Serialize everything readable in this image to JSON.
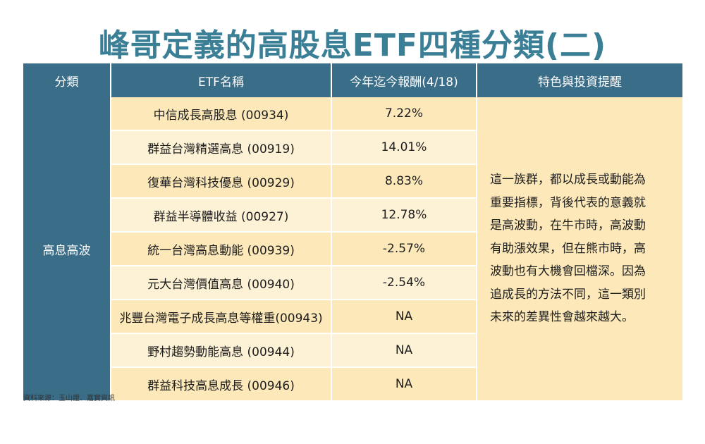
{
  "title": "峰哥定義的高股息ETF四種分類(二)",
  "headers": [
    "分類",
    "ETF名稱",
    "今年迄今報酬(4/18)",
    "特色與投資提醒"
  ],
  "category": "高息高波",
  "rows": [
    {
      "name": "中信成長高股息 (00934)",
      "return": "7.22%"
    },
    {
      "name": "群益台灣精選高息 (00919)",
      "return": "14.01%"
    },
    {
      "name": "復華台灣科技優息 (00929)",
      "return": "8.83%"
    },
    {
      "name": "群益半導體收益 (00927)",
      "return": "12.78%"
    },
    {
      "name": "統一台灣高息動能 (00939)",
      "return": "-2.57%"
    },
    {
      "name": "元大台灣價值高息 (00940)",
      "return": "-2.54%"
    },
    {
      "name": "兆豐台灣電子成長高息等權重(00943)",
      "return": "NA"
    },
    {
      "name": "野村趨勢動能高息 (00944)",
      "return": "NA"
    },
    {
      "name": "群益科技高息成長 (00946)",
      "return": "NA"
    }
  ],
  "note_lines": [
    "這一族群，都以成長或動能為",
    "重要指標，背後代表的意義就",
    "是高波動，在牛市時，高波動",
    "有助漲效果，但在熊市時，高",
    "波動也有大機會回檔深。因為",
    "追成長的方法不同，這一類別",
    "未來的差異性會越來越大。"
  ],
  "source": "資料來源：玉山證、嘉實資訊",
  "colors": {
    "title": "#3a7f96",
    "header_bg": "#3a6d88",
    "row_light": "#fdf2d6",
    "row_dark": "#fce8b9"
  }
}
